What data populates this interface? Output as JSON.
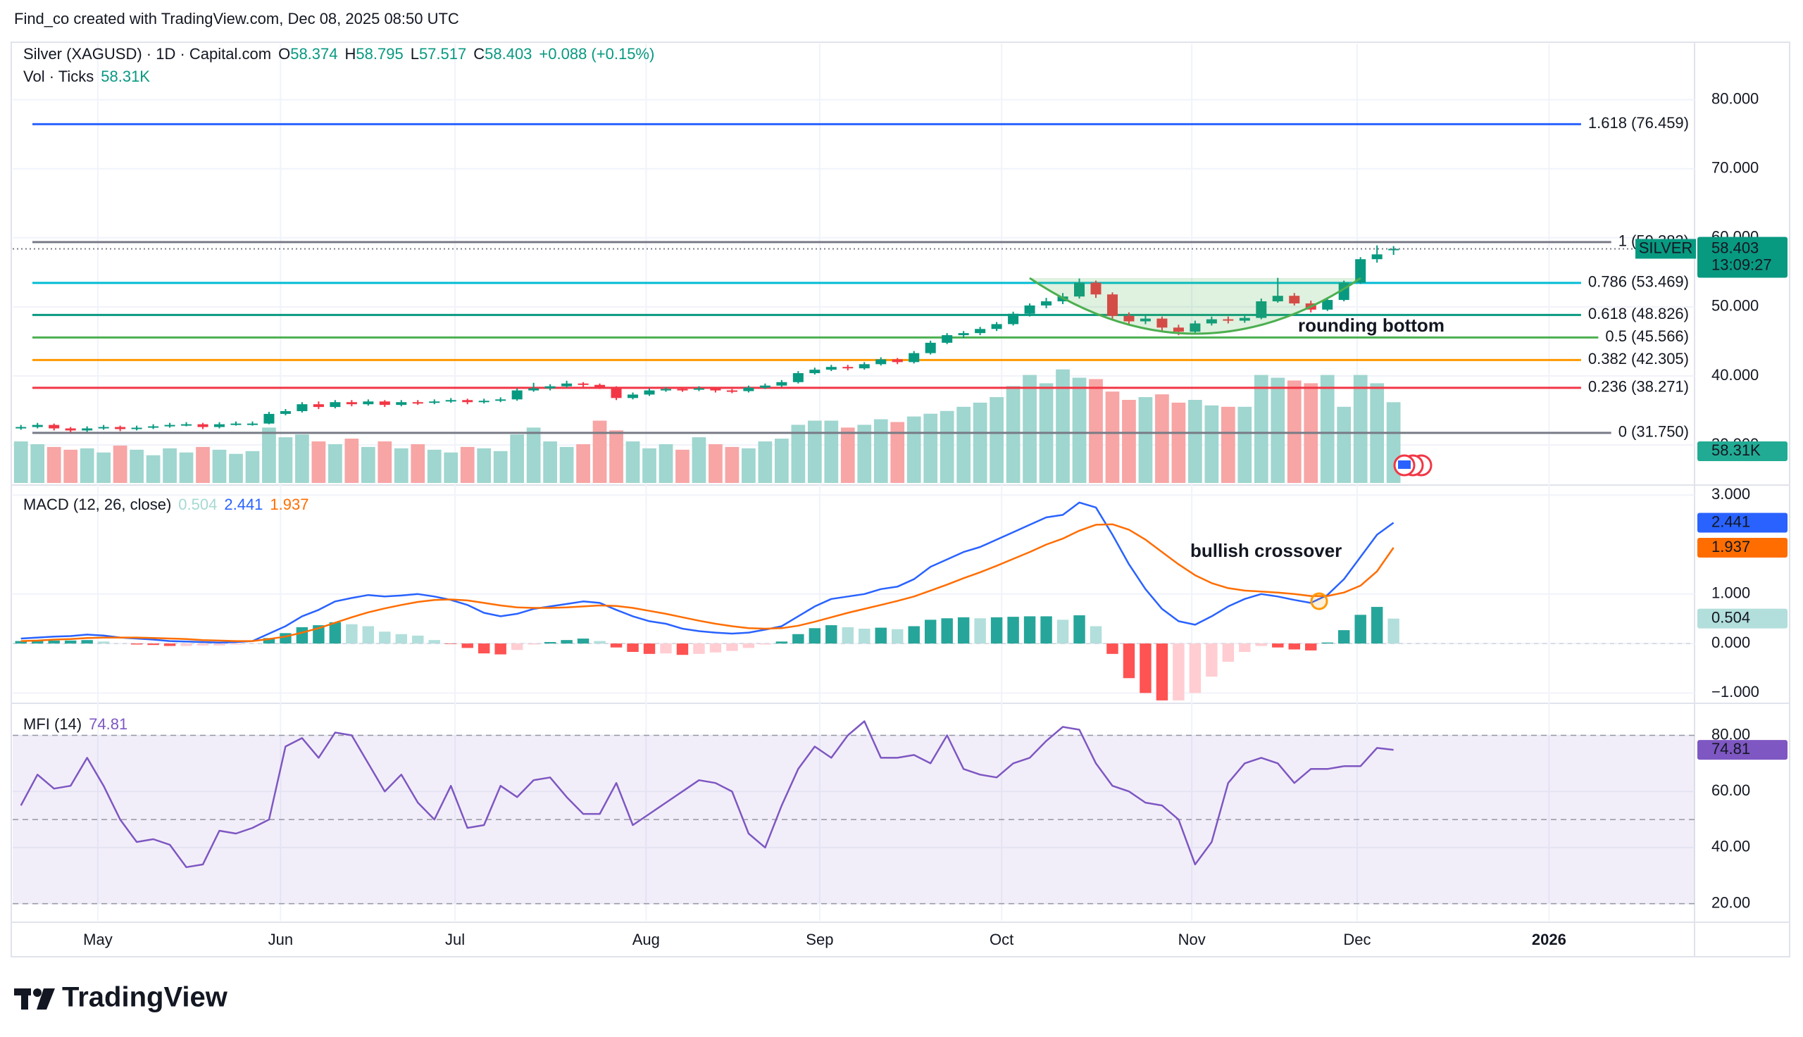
{
  "header": {
    "attribution": "Find_co created with TradingView.com, Dec 08, 2025 08:50 UTC",
    "brand": "TradingView"
  },
  "chart_data": [
    {
      "type": "candlestick",
      "title": "Silver (XAGUSD) · 1D · Capital.com",
      "legend": {
        "o": "O",
        "h": "H",
        "l": "L",
        "c": "C",
        "change": "+0.088 (+0.15%)"
      },
      "up_color": "#089981",
      "down_color": "#f23645",
      "grid": true,
      "xlim": [
        -0.5,
        101.2
      ],
      "xticks": [
        {
          "value": 4.65,
          "label": "May"
        },
        {
          "value": 15.7,
          "label": "Jun"
        },
        {
          "value": 26.25,
          "label": "Jul"
        },
        {
          "value": 37.8,
          "label": "Aug"
        },
        {
          "value": 48.3,
          "label": "Sep"
        },
        {
          "value": 59.3,
          "label": "Oct"
        },
        {
          "value": 70.8,
          "label": "Nov"
        },
        {
          "value": 80.8,
          "label": "Dec"
        },
        {
          "value": 92.4,
          "label": "2026"
        }
      ],
      "ylim": [
        24.5,
        87.3
      ],
      "yticks": [
        {
          "value": 80,
          "label": "80.000"
        },
        {
          "value": 70,
          "label": "70.000"
        },
        {
          "value": 60,
          "label": "60.000"
        },
        {
          "value": 50,
          "label": "50.000"
        },
        {
          "value": 40,
          "label": "40.000"
        },
        {
          "value": 30,
          "label": "30.000"
        }
      ],
      "ohlc": [
        [
          32.4,
          32.9,
          32.2,
          32.6
        ],
        [
          32.6,
          33.2,
          32.4,
          32.9
        ],
        [
          32.9,
          33.1,
          32.1,
          32.4
        ],
        [
          32.4,
          32.6,
          31.8,
          32.1
        ],
        [
          32.1,
          32.7,
          31.9,
          32.4
        ],
        [
          32.4,
          32.9,
          32.2,
          32.6
        ],
        [
          32.6,
          32.8,
          32.0,
          32.3
        ],
        [
          32.3,
          32.8,
          32.1,
          32.5
        ],
        [
          32.5,
          33.0,
          32.3,
          32.7
        ],
        [
          32.7,
          33.2,
          32.5,
          32.9
        ],
        [
          32.9,
          33.3,
          32.7,
          33.0
        ],
        [
          33.0,
          33.2,
          32.3,
          32.6
        ],
        [
          32.6,
          33.3,
          32.4,
          33.0
        ],
        [
          33.0,
          33.4,
          32.8,
          33.1
        ],
        [
          33.1,
          33.4,
          32.8,
          33.1
        ],
        [
          33.1,
          34.8,
          33.0,
          34.5
        ],
        [
          34.5,
          35.2,
          34.3,
          34.9
        ],
        [
          34.9,
          36.2,
          34.7,
          35.9
        ],
        [
          35.9,
          36.3,
          35.2,
          35.5
        ],
        [
          35.5,
          36.5,
          35.3,
          36.2
        ],
        [
          36.2,
          36.5,
          35.6,
          35.9
        ],
        [
          35.9,
          36.6,
          35.7,
          36.3
        ],
        [
          36.3,
          36.5,
          35.5,
          35.8
        ],
        [
          35.8,
          36.5,
          35.6,
          36.2
        ],
        [
          36.2,
          36.5,
          35.8,
          36.1
        ],
        [
          36.1,
          36.6,
          35.9,
          36.3
        ],
        [
          36.3,
          36.8,
          36.1,
          36.5
        ],
        [
          36.5,
          36.7,
          35.9,
          36.2
        ],
        [
          36.2,
          36.7,
          36.0,
          36.4
        ],
        [
          36.4,
          36.9,
          36.2,
          36.6
        ],
        [
          36.6,
          38.2,
          36.4,
          37.9
        ],
        [
          37.9,
          39.0,
          37.7,
          38.2
        ],
        [
          38.2,
          38.8,
          37.9,
          38.5
        ],
        [
          38.5,
          39.3,
          38.3,
          38.9
        ],
        [
          38.9,
          39.1,
          38.4,
          38.7
        ],
        [
          38.7,
          38.9,
          38.1,
          38.4
        ],
        [
          38.4,
          38.5,
          36.5,
          36.8
        ],
        [
          36.8,
          37.6,
          36.6,
          37.3
        ],
        [
          37.3,
          38.2,
          37.1,
          37.9
        ],
        [
          37.9,
          38.4,
          37.7,
          38.1
        ],
        [
          38.1,
          38.4,
          37.7,
          38.0
        ],
        [
          38.0,
          38.5,
          37.8,
          38.2
        ],
        [
          38.2,
          38.4,
          37.6,
          37.9
        ],
        [
          37.9,
          38.1,
          37.5,
          37.8
        ],
        [
          37.8,
          38.6,
          37.6,
          38.3
        ],
        [
          38.3,
          38.9,
          38.1,
          38.6
        ],
        [
          38.6,
          39.4,
          38.4,
          39.1
        ],
        [
          39.1,
          40.7,
          38.9,
          40.4
        ],
        [
          40.4,
          41.2,
          40.2,
          40.9
        ],
        [
          40.9,
          41.6,
          40.7,
          41.3
        ],
        [
          41.3,
          41.6,
          40.8,
          41.1
        ],
        [
          41.1,
          42.0,
          40.9,
          41.7
        ],
        [
          41.7,
          42.7,
          41.5,
          42.4
        ],
        [
          42.4,
          42.6,
          41.7,
          42.0
        ],
        [
          42.0,
          43.6,
          41.8,
          43.3
        ],
        [
          43.3,
          45.1,
          43.1,
          44.8
        ],
        [
          44.8,
          46.2,
          44.6,
          45.9
        ],
        [
          45.9,
          46.5,
          45.5,
          46.2
        ],
        [
          46.2,
          47.1,
          45.9,
          46.8
        ],
        [
          46.8,
          47.8,
          46.5,
          47.5
        ],
        [
          47.5,
          49.3,
          47.3,
          49.0
        ],
        [
          49.0,
          50.5,
          48.6,
          50.2
        ],
        [
          50.2,
          51.3,
          49.8,
          50.8
        ],
        [
          50.8,
          52.0,
          50.4,
          51.5
        ],
        [
          51.5,
          54.1,
          51.2,
          53.5
        ],
        [
          53.5,
          53.8,
          51.3,
          51.8
        ],
        [
          51.8,
          52.1,
          48.3,
          48.7
        ],
        [
          48.7,
          49.2,
          47.3,
          47.9
        ],
        [
          47.9,
          48.9,
          47.5,
          48.3
        ],
        [
          48.3,
          48.6,
          46.5,
          47.0
        ],
        [
          47.0,
          47.4,
          45.9,
          46.4
        ],
        [
          46.4,
          48.0,
          46.1,
          47.6
        ],
        [
          47.6,
          48.6,
          47.3,
          48.2
        ],
        [
          48.2,
          48.6,
          47.6,
          48.0
        ],
        [
          48.0,
          48.8,
          47.7,
          48.4
        ],
        [
          48.4,
          51.2,
          48.2,
          50.8
        ],
        [
          50.8,
          54.2,
          50.6,
          51.6
        ],
        [
          51.6,
          52.0,
          50.2,
          50.5
        ],
        [
          50.5,
          50.9,
          49.2,
          49.6
        ],
        [
          49.6,
          51.3,
          49.4,
          51.0
        ],
        [
          51.0,
          53.8,
          50.8,
          53.5
        ],
        [
          53.5,
          57.2,
          53.3,
          56.9
        ],
        [
          56.9,
          58.9,
          56.4,
          57.6
        ],
        [
          58.374,
          58.795,
          57.517,
          58.403
        ]
      ],
      "volume": {
        "title": "Vol · Ticks",
        "last_label": "58.31K",
        "lim": [
          0,
          90
        ],
        "up_color": "#9fd6cf",
        "down_color": "#f7a5a5",
        "label_color": "#22ab94",
        "values": [
          30,
          28,
          26,
          24,
          25,
          22,
          27,
          24,
          20,
          25,
          22,
          26,
          24,
          21,
          23,
          40,
          33,
          35,
          30,
          28,
          32,
          26,
          30,
          25,
          28,
          24,
          22,
          26,
          25,
          23,
          35,
          40,
          30,
          26,
          28,
          45,
          38,
          30,
          25,
          28,
          24,
          33,
          28,
          26,
          25,
          30,
          32,
          42,
          45,
          45,
          40,
          42,
          46,
          44,
          48,
          50,
          52,
          55,
          58,
          62,
          70,
          78,
          72,
          82,
          76,
          75,
          66,
          60,
          62,
          64,
          58,
          60,
          56,
          55,
          55,
          78,
          76,
          74,
          72,
          78,
          55,
          78,
          72,
          58.31
        ]
      },
      "fib_levels": [
        {
          "label": "1.618 (76.459)",
          "value": 76.459,
          "color": "#2962ff"
        },
        {
          "label": "1 (59.382)",
          "value": 59.382,
          "color": "#787b86"
        },
        {
          "label": "0.786 (53.469)",
          "value": 53.469,
          "color": "#00bcd4"
        },
        {
          "label": "0.618 (48.826)",
          "value": 48.826,
          "color": "#089981"
        },
        {
          "label": "0.5 (45.566)",
          "value": 45.566,
          "color": "#4caf50"
        },
        {
          "label": "0.382 (42.305)",
          "value": 42.305,
          "color": "#ff9800"
        },
        {
          "label": "0.236 (38.271)",
          "value": 38.271,
          "color": "#f23645"
        },
        {
          "label": "0 (31.750)",
          "value": 31.75,
          "color": "#787b86"
        }
      ],
      "price_label": {
        "symbol": "SILVER",
        "countdown": "13:09:27",
        "color": "#089981"
      },
      "annotations": [
        "rounding bottom"
      ]
    },
    {
      "type": "macd",
      "title": "MACD (12, 26, close)",
      "ylim": [
        -1.18,
        3.16
      ],
      "yticks": [
        {
          "value": 3,
          "label": "3.000"
        },
        {
          "value": 1,
          "label": "1.000"
        },
        {
          "value": 0,
          "label": "0.000"
        },
        {
          "value": -1,
          "label": "−1.000"
        }
      ],
      "series": [
        {
          "kind": "histogram",
          "colors": [
            "#26a69a",
            "#b2dfdb",
            "#ffcdd2",
            "#ff5252"
          ],
          "values": [
            0.05,
            0.06,
            0.06,
            0.06,
            0.07,
            0.04,
            0.0,
            -0.02,
            -0.03,
            -0.05,
            -0.05,
            -0.04,
            -0.04,
            -0.02,
            0.0,
            0.11,
            0.21,
            0.33,
            0.37,
            0.43,
            0.39,
            0.35,
            0.24,
            0.19,
            0.16,
            0.07,
            -0.01,
            -0.09,
            -0.2,
            -0.22,
            -0.13,
            -0.02,
            0.03,
            0.07,
            0.1,
            0.05,
            -0.08,
            -0.17,
            -0.21,
            -0.2,
            -0.23,
            -0.21,
            -0.18,
            -0.15,
            -0.09,
            -0.02,
            0.04,
            0.19,
            0.31,
            0.37,
            0.33,
            0.3,
            0.32,
            0.29,
            0.35,
            0.48,
            0.51,
            0.53,
            0.51,
            0.53,
            0.54,
            0.55,
            0.55,
            0.48,
            0.57,
            0.35,
            -0.21,
            -0.7,
            -1.0,
            -1.15,
            -1.15,
            -1.0,
            -0.67,
            -0.37,
            -0.17,
            -0.05,
            -0.08,
            -0.12,
            -0.14,
            0.02,
            0.27,
            0.58,
            0.74,
            0.504
          ]
        },
        {
          "kind": "line",
          "color": "#2962ff",
          "values": [
            0.1,
            0.12,
            0.14,
            0.15,
            0.18,
            0.16,
            0.12,
            0.1,
            0.08,
            0.05,
            0.04,
            0.03,
            0.02,
            0.03,
            0.05,
            0.2,
            0.35,
            0.55,
            0.68,
            0.85,
            0.92,
            0.98,
            0.95,
            0.97,
            1.0,
            0.95,
            0.88,
            0.78,
            0.62,
            0.55,
            0.6,
            0.7,
            0.75,
            0.8,
            0.85,
            0.82,
            0.68,
            0.55,
            0.45,
            0.4,
            0.3,
            0.25,
            0.22,
            0.2,
            0.22,
            0.28,
            0.35,
            0.55,
            0.75,
            0.9,
            0.95,
            1.0,
            1.1,
            1.15,
            1.3,
            1.55,
            1.7,
            1.85,
            1.95,
            2.1,
            2.25,
            2.4,
            2.55,
            2.6,
            2.85,
            2.75,
            2.2,
            1.6,
            1.1,
            0.7,
            0.45,
            0.38,
            0.55,
            0.75,
            0.9,
            1.0,
            0.95,
            0.88,
            0.82,
            0.98,
            1.3,
            1.75,
            2.2,
            2.441
          ]
        },
        {
          "kind": "line",
          "color": "#ff6d00",
          "values": [
            0.05,
            0.06,
            0.08,
            0.09,
            0.11,
            0.12,
            0.12,
            0.12,
            0.11,
            0.1,
            0.09,
            0.07,
            0.06,
            0.05,
            0.05,
            0.09,
            0.14,
            0.22,
            0.31,
            0.42,
            0.53,
            0.63,
            0.71,
            0.78,
            0.84,
            0.88,
            0.89,
            0.87,
            0.82,
            0.77,
            0.73,
            0.72,
            0.72,
            0.73,
            0.75,
            0.77,
            0.76,
            0.72,
            0.66,
            0.6,
            0.53,
            0.46,
            0.4,
            0.35,
            0.31,
            0.3,
            0.31,
            0.36,
            0.44,
            0.53,
            0.62,
            0.7,
            0.78,
            0.86,
            0.95,
            1.07,
            1.19,
            1.32,
            1.44,
            1.57,
            1.71,
            1.85,
            2.0,
            2.12,
            2.28,
            2.4,
            2.41,
            2.3,
            2.1,
            1.85,
            1.6,
            1.38,
            1.22,
            1.12,
            1.07,
            1.05,
            1.03,
            1.0,
            0.96,
            0.96,
            1.03,
            1.17,
            1.46,
            1.937
          ]
        }
      ],
      "annotations": [
        "bullish crossover"
      ]
    },
    {
      "type": "mfi",
      "title": "MFI (14)",
      "ylim": [
        14.4,
        90.9
      ],
      "color": "#7e57c2",
      "bands": [
        80,
        50,
        20
      ],
      "band_fill": "rgba(126,87,194,0.1)",
      "yticks": [
        {
          "value": 80,
          "label": "80.00"
        },
        {
          "value": 60,
          "label": "60.00"
        },
        {
          "value": 40,
          "label": "40.00"
        },
        {
          "value": 20,
          "label": "20.00"
        }
      ],
      "values": [
        55,
        66,
        61,
        62,
        72,
        62,
        50,
        42,
        43,
        41,
        33,
        34,
        46,
        45,
        47,
        50,
        76,
        79,
        72,
        81,
        80,
        70,
        60,
        66,
        56,
        50,
        62,
        47,
        48,
        62,
        58,
        64,
        65,
        58,
        52,
        52,
        63,
        48,
        52,
        56,
        60,
        64,
        63,
        60,
        45,
        40,
        55,
        68,
        76,
        72,
        80,
        85,
        72,
        72,
        73,
        70,
        80,
        68,
        66,
        65,
        70,
        72,
        78,
        83,
        82,
        70,
        62,
        60,
        56,
        55,
        50,
        34,
        42,
        63,
        70,
        72,
        70,
        63,
        68,
        68,
        69,
        69,
        75.5,
        74.81
      ]
    }
  ]
}
